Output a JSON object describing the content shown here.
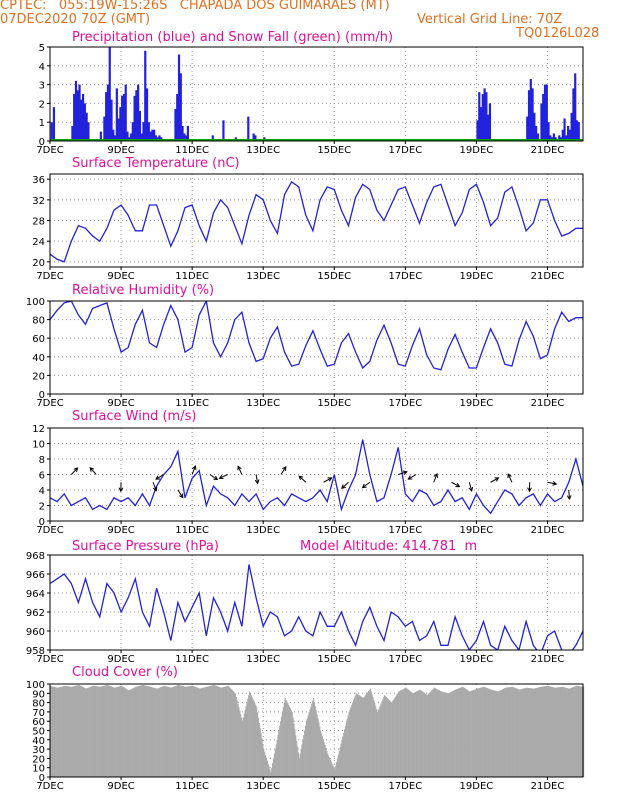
{
  "header": {
    "line1": "CPTEC:   055:19W-15:26S   CHAPADA DOS GUIMARAES (MT)",
    "line2_left": "07DEC2020 70Z (GMT)",
    "line2_right": "Vertical Grid Line: 70Z",
    "line3_right": "TQ0126L028"
  },
  "colors": {
    "header": "#e07020",
    "panel_title": "#e0109a",
    "line": "#2222dd",
    "precip": "#2222dd",
    "snow": "#00a000",
    "cloud": "#aaaaaa",
    "grid": "#999999"
  },
  "x_ticks": [
    "7DEC",
    "9DEC",
    "11DEC",
    "13DEC",
    "15DEC",
    "17DEC",
    "19DEC",
    "21DEC"
  ],
  "chart_data": [
    {
      "type": "bar",
      "title": "Precipitation (blue) and Snow Fall (green) (mm/h)",
      "ylim": [
        0,
        5
      ],
      "yticks": [
        0,
        1,
        2,
        3,
        4,
        5
      ],
      "x_range_days": [
        7,
        22
      ],
      "series": [
        {
          "name": "Precipitation",
          "color": "#2222dd",
          "x": [
            7.02,
            7.08,
            7.6,
            7.65,
            7.7,
            7.75,
            7.8,
            7.85,
            7.9,
            7.95,
            8.0,
            8.05,
            8.4,
            8.5,
            8.55,
            8.6,
            8.65,
            8.7,
            8.75,
            8.8,
            8.85,
            8.9,
            8.95,
            9.0,
            9.05,
            9.1,
            9.15,
            9.2,
            9.25,
            9.3,
            9.35,
            9.4,
            9.45,
            9.5,
            9.55,
            9.6,
            9.65,
            9.7,
            9.75,
            9.8,
            9.85,
            9.9,
            9.95,
            10.0,
            10.05,
            10.1,
            10.5,
            10.55,
            10.6,
            10.65,
            10.7,
            10.75,
            10.8,
            10.85,
            11.55,
            11.85,
            12.2,
            12.55,
            12.7,
            12.75,
            13.0,
            14.0,
            15.2,
            17.0,
            19.0,
            19.05,
            19.1,
            19.15,
            19.2,
            19.25,
            19.3,
            19.35,
            20.4,
            20.45,
            20.5,
            20.55,
            20.6,
            20.65,
            20.7,
            20.8,
            20.85,
            20.9,
            20.95,
            21.0,
            21.05,
            21.1,
            21.15,
            21.2,
            21.25,
            21.3,
            21.35,
            21.4,
            21.45,
            21.5,
            21.55,
            21.6,
            21.65,
            21.7,
            21.75,
            21.8,
            21.85
          ],
          "values": [
            1.0,
            1.8,
            0.8,
            2.5,
            3.2,
            2.7,
            3.0,
            2.2,
            2.5,
            2.0,
            1.5,
            1.0,
            0.5,
            1.3,
            2.6,
            3.0,
            5.0,
            2.2,
            0.6,
            0.3,
            2.8,
            1.2,
            1.8,
            2.4,
            2.5,
            3.0,
            0.5,
            0.2,
            0.4,
            1.0,
            2.4,
            2.7,
            3.0,
            1.6,
            0.4,
            1.0,
            4.8,
            2.8,
            1.0,
            0.5,
            0.6,
            0.6,
            0.3,
            0.2,
            0.3,
            0.2,
            1.7,
            2.5,
            4.6,
            3.6,
            0.8,
            0.4,
            0.3,
            0.8,
            0.3,
            1.1,
            0.2,
            1.3,
            0.4,
            0.3,
            0.2,
            0.1,
            0.1,
            0.1,
            1.1,
            2.6,
            1.8,
            2.5,
            2.8,
            2.6,
            1.4,
            2.0,
            1.3,
            2.7,
            3.3,
            2.8,
            1.5,
            0.8,
            0.4,
            2.0,
            2.5,
            3.0,
            3.0,
            1.0,
            0.3,
            0.2,
            0.4,
            0.2,
            0.1,
            0.3,
            0.2,
            0.6,
            1.2,
            0.3,
            0.8,
            0.6,
            1.5,
            2.8,
            3.6,
            1.1,
            1.0
          ]
        },
        {
          "name": "Snow Fall",
          "color": "#00a000",
          "x": [],
          "values": []
        }
      ]
    },
    {
      "type": "line",
      "title": "Surface Temperature (nC)",
      "ylim": [
        19,
        37
      ],
      "yticks": [
        20,
        24,
        28,
        32,
        36
      ],
      "x": [
        7.0,
        7.2,
        7.4,
        7.6,
        7.8,
        8.0,
        8.2,
        8.4,
        8.6,
        8.8,
        9.0,
        9.2,
        9.4,
        9.6,
        9.8,
        10.0,
        10.2,
        10.4,
        10.6,
        10.8,
        11.0,
        11.2,
        11.4,
        11.6,
        11.8,
        12.0,
        12.2,
        12.4,
        12.6,
        12.8,
        13.0,
        13.2,
        13.4,
        13.6,
        13.8,
        14.0,
        14.2,
        14.4,
        14.6,
        14.8,
        15.0,
        15.2,
        15.4,
        15.6,
        15.8,
        16.0,
        16.2,
        16.4,
        16.6,
        16.8,
        17.0,
        17.2,
        17.4,
        17.6,
        17.8,
        18.0,
        18.2,
        18.4,
        18.6,
        18.8,
        19.0,
        19.2,
        19.4,
        19.6,
        19.8,
        20.0,
        20.2,
        20.4,
        20.6,
        20.8,
        21.0,
        21.2,
        21.4,
        21.6,
        21.8,
        22.0
      ],
      "values": [
        21.5,
        20.5,
        20.0,
        24.0,
        27.0,
        26.5,
        25.0,
        24.0,
        26.5,
        30.0,
        31.0,
        29.0,
        26.0,
        26.0,
        31.0,
        31.0,
        27.0,
        23.0,
        26.0,
        30.5,
        31.0,
        27.0,
        24.0,
        29.5,
        32.0,
        30.5,
        27.0,
        23.5,
        29.0,
        33.0,
        32.0,
        28.0,
        25.5,
        33.0,
        35.5,
        34.5,
        29.0,
        26.0,
        32.0,
        34.5,
        34.0,
        30.0,
        27.0,
        32.5,
        35.0,
        34.0,
        30.0,
        28.0,
        31.0,
        34.0,
        34.5,
        31.0,
        27.5,
        31.5,
        34.5,
        35.0,
        31.0,
        27.0,
        29.5,
        34.0,
        35.0,
        31.5,
        27.0,
        28.5,
        33.5,
        34.5,
        30.5,
        26.0,
        27.5,
        32.0,
        32.0,
        28.0,
        25.0,
        25.5,
        26.5,
        26.5
      ]
    },
    {
      "type": "line",
      "title": "Relative Humidity (%)",
      "ylim": [
        0,
        100
      ],
      "yticks": [
        0,
        20,
        40,
        60,
        80,
        100
      ],
      "x": [
        7.0,
        7.2,
        7.4,
        7.6,
        7.8,
        8.0,
        8.2,
        8.4,
        8.6,
        8.8,
        9.0,
        9.2,
        9.4,
        9.6,
        9.8,
        10.0,
        10.2,
        10.4,
        10.6,
        10.8,
        11.0,
        11.2,
        11.4,
        11.6,
        11.8,
        12.0,
        12.2,
        12.4,
        12.6,
        12.8,
        13.0,
        13.2,
        13.4,
        13.6,
        13.8,
        14.0,
        14.2,
        14.4,
        14.6,
        14.8,
        15.0,
        15.2,
        15.4,
        15.6,
        15.8,
        16.0,
        16.2,
        16.4,
        16.6,
        16.8,
        17.0,
        17.2,
        17.4,
        17.6,
        17.8,
        18.0,
        18.2,
        18.4,
        18.6,
        18.8,
        19.0,
        19.2,
        19.4,
        19.6,
        19.8,
        20.0,
        20.2,
        20.4,
        20.6,
        20.8,
        21.0,
        21.2,
        21.4,
        21.6,
        21.8,
        22.0
      ],
      "values": [
        80,
        90,
        98,
        100,
        85,
        75,
        92,
        95,
        98,
        70,
        45,
        50,
        75,
        90,
        55,
        50,
        75,
        95,
        80,
        45,
        50,
        85,
        100,
        55,
        40,
        55,
        80,
        88,
        55,
        35,
        38,
        60,
        72,
        45,
        30,
        32,
        52,
        68,
        48,
        30,
        32,
        55,
        65,
        45,
        28,
        35,
        58,
        74,
        55,
        32,
        30,
        52,
        70,
        42,
        28,
        26,
        48,
        64,
        45,
        28,
        28,
        50,
        70,
        55,
        32,
        30,
        58,
        78,
        62,
        38,
        42,
        70,
        88,
        78,
        82,
        82
      ]
    },
    {
      "type": "line",
      "title": "Surface Wind (m/s)",
      "ylim": [
        0,
        12
      ],
      "yticks": [
        0,
        2,
        4,
        6,
        8,
        10,
        12
      ],
      "x": [
        7.0,
        7.2,
        7.4,
        7.6,
        7.8,
        8.0,
        8.2,
        8.4,
        8.6,
        8.8,
        9.0,
        9.2,
        9.4,
        9.6,
        9.8,
        10.0,
        10.2,
        10.4,
        10.6,
        10.8,
        11.0,
        11.2,
        11.4,
        11.6,
        11.8,
        12.0,
        12.2,
        12.4,
        12.6,
        12.8,
        13.0,
        13.2,
        13.4,
        13.6,
        13.8,
        14.0,
        14.2,
        14.4,
        14.6,
        14.8,
        15.0,
        15.2,
        15.4,
        15.6,
        15.8,
        16.0,
        16.2,
        16.4,
        16.6,
        16.8,
        17.0,
        17.2,
        17.4,
        17.6,
        17.8,
        18.0,
        18.2,
        18.4,
        18.6,
        18.8,
        19.0,
        19.2,
        19.4,
        19.6,
        19.8,
        20.0,
        20.2,
        20.4,
        20.6,
        20.8,
        21.0,
        21.2,
        21.4,
        21.6,
        21.8,
        22.0
      ],
      "values": [
        3.0,
        2.5,
        3.5,
        2.0,
        2.5,
        3.0,
        1.5,
        2.0,
        1.5,
        3.0,
        2.5,
        3.0,
        2.0,
        3.5,
        2.0,
        4.5,
        6.0,
        7.0,
        9.0,
        3.0,
        5.5,
        6.5,
        2.0,
        4.5,
        3.5,
        3.0,
        2.0,
        3.5,
        2.5,
        3.5,
        1.5,
        2.5,
        3.0,
        2.0,
        3.5,
        3.0,
        2.5,
        3.0,
        4.0,
        2.5,
        6.0,
        1.5,
        4.0,
        6.0,
        10.5,
        6.0,
        2.5,
        3.0,
        6.0,
        9.5,
        3.5,
        2.5,
        4.0,
        3.5,
        2.0,
        2.5,
        4.0,
        2.5,
        3.0,
        1.5,
        3.5,
        2.0,
        1.0,
        2.5,
        4.0,
        3.5,
        2.0,
        3.0,
        3.5,
        2.0,
        3.5,
        2.5,
        3.0,
        5.0,
        8.0,
        4.5
      ]
    },
    {
      "type": "line",
      "title": "Surface Pressure (hPa)",
      "annotation": "Model Altitude: 414.781  m",
      "ylim": [
        958,
        968
      ],
      "yticks": [
        958,
        960,
        962,
        964,
        966,
        968
      ],
      "x": [
        7.0,
        7.2,
        7.4,
        7.6,
        7.8,
        8.0,
        8.2,
        8.4,
        8.6,
        8.8,
        9.0,
        9.2,
        9.4,
        9.6,
        9.8,
        10.0,
        10.2,
        10.4,
        10.6,
        10.8,
        11.0,
        11.2,
        11.4,
        11.6,
        11.8,
        12.0,
        12.2,
        12.4,
        12.6,
        12.8,
        13.0,
        13.2,
        13.4,
        13.6,
        13.8,
        14.0,
        14.2,
        14.4,
        14.6,
        14.8,
        15.0,
        15.2,
        15.4,
        15.6,
        15.8,
        16.0,
        16.2,
        16.4,
        16.6,
        16.8,
        17.0,
        17.2,
        17.4,
        17.6,
        17.8,
        18.0,
        18.2,
        18.4,
        18.6,
        18.8,
        19.0,
        19.2,
        19.4,
        19.6,
        19.8,
        20.0,
        20.2,
        20.4,
        20.6,
        20.8,
        21.0,
        21.2,
        21.4,
        21.6,
        21.8,
        22.0
      ],
      "values": [
        965.0,
        965.5,
        966.0,
        965.0,
        963.0,
        965.5,
        963.0,
        961.5,
        965.0,
        964.0,
        962.0,
        963.5,
        965.5,
        962.0,
        960.5,
        964.5,
        962.0,
        959.0,
        963.0,
        961.0,
        962.5,
        964.0,
        959.5,
        963.5,
        962.0,
        960.0,
        963.0,
        960.5,
        967.0,
        963.5,
        960.5,
        962.0,
        961.5,
        959.5,
        960.0,
        961.5,
        960.0,
        959.5,
        962.0,
        960.5,
        960.5,
        962.0,
        960.0,
        958.5,
        961.0,
        962.5,
        960.5,
        959.0,
        962.0,
        961.5,
        960.5,
        961.0,
        959.0,
        959.5,
        961.0,
        958.5,
        958.5,
        961.5,
        959.5,
        958.0,
        959.0,
        961.0,
        958.5,
        958.0,
        960.5,
        959.0,
        958.0,
        961.0,
        958.5,
        957.5,
        959.5,
        960.0,
        958.0,
        957.5,
        958.5,
        960.0
      ]
    },
    {
      "type": "area",
      "title": "Cloud Cover (%)",
      "ylim": [
        0,
        100
      ],
      "yticks": [
        0,
        10,
        20,
        30,
        40,
        50,
        60,
        70,
        80,
        90,
        100
      ],
      "x": [
        7.0,
        7.2,
        7.4,
        7.6,
        7.8,
        8.0,
        8.2,
        8.4,
        8.6,
        8.8,
        9.0,
        9.2,
        9.4,
        9.6,
        9.8,
        10.0,
        10.2,
        10.4,
        10.6,
        10.8,
        11.0,
        11.2,
        11.4,
        11.6,
        11.8,
        12.0,
        12.2,
        12.4,
        12.6,
        12.8,
        13.0,
        13.2,
        13.4,
        13.6,
        13.8,
        14.0,
        14.2,
        14.4,
        14.6,
        14.8,
        15.0,
        15.2,
        15.4,
        15.6,
        15.8,
        16.0,
        16.2,
        16.4,
        16.6,
        16.8,
        17.0,
        17.2,
        17.4,
        17.6,
        17.8,
        18.0,
        18.2,
        18.4,
        18.6,
        18.8,
        19.0,
        19.2,
        19.4,
        19.6,
        19.8,
        20.0,
        20.2,
        20.4,
        20.6,
        20.8,
        21.0,
        21.2,
        21.4,
        21.6,
        21.8,
        22.0
      ],
      "values": [
        98,
        96,
        98,
        97,
        99,
        95,
        98,
        97,
        99,
        96,
        98,
        93,
        97,
        99,
        97,
        95,
        98,
        96,
        99,
        97,
        98,
        95,
        97,
        99,
        96,
        98,
        90,
        60,
        92,
        75,
        30,
        5,
        45,
        85,
        70,
        20,
        60,
        85,
        50,
        25,
        8,
        40,
        70,
        90,
        85,
        95,
        70,
        88,
        80,
        92,
        96,
        90,
        94,
        88,
        96,
        92,
        90,
        94,
        97,
        92,
        95,
        97,
        94,
        92,
        96,
        97,
        94,
        96,
        95,
        97,
        98,
        96,
        97,
        95,
        98,
        97
      ]
    }
  ]
}
